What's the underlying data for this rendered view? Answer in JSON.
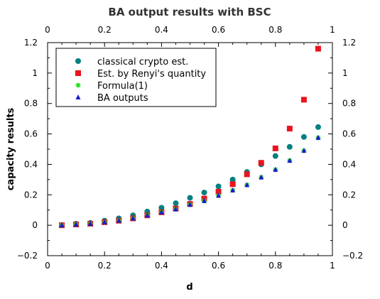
{
  "chart_data": {
    "type": "scatter",
    "title": "BA output results with BSC",
    "xlabel": "d",
    "ylabel": "capacity results",
    "xlim": [
      0,
      1
    ],
    "ylim": [
      -0.2,
      1.2
    ],
    "xticks": [
      "0",
      "0.2",
      "0.4",
      "0.6",
      "0.8",
      "1"
    ],
    "xticks_top": [
      "0",
      "0.2",
      "0.4",
      "0.6",
      "0.8",
      "1"
    ],
    "yticks": [
      "−0.2",
      "0",
      "0.2",
      "0.4",
      "0.6",
      "0.8",
      "1",
      "1.2"
    ],
    "yticks_right": [
      "−0.2",
      "0",
      "0.2",
      "0.4",
      "0.6",
      "0.8",
      "1",
      "1.2"
    ],
    "grid": false,
    "legend_position": "top-left",
    "series": [
      {
        "name": "classical crypto est.",
        "marker": "circle",
        "color": "#008080",
        "x": [
          0.05,
          0.1,
          0.15,
          0.2,
          0.25,
          0.3,
          0.35,
          0.4,
          0.45,
          0.5,
          0.55,
          0.6,
          0.65,
          0.7,
          0.75,
          0.8,
          0.85,
          0.9,
          0.95
        ],
        "y": [
          0.0,
          0.01,
          0.015,
          0.03,
          0.045,
          0.065,
          0.09,
          0.115,
          0.145,
          0.18,
          0.215,
          0.255,
          0.3,
          0.35,
          0.4,
          0.455,
          0.515,
          0.58,
          0.645
        ]
      },
      {
        "name": "Est. by Renyi's quantity",
        "marker": "square",
        "color": "#e8141e",
        "x": [
          0.05,
          0.1,
          0.15,
          0.2,
          0.25,
          0.3,
          0.35,
          0.4,
          0.45,
          0.5,
          0.55,
          0.6,
          0.65,
          0.7,
          0.75,
          0.8,
          0.85,
          0.9,
          0.95
        ],
        "y": [
          0.0,
          0.005,
          0.01,
          0.02,
          0.03,
          0.045,
          0.065,
          0.085,
          0.11,
          0.14,
          0.175,
          0.22,
          0.27,
          0.335,
          0.41,
          0.505,
          0.635,
          0.825,
          1.16
        ]
      },
      {
        "name": "Formula(1)",
        "marker": "star",
        "color": "#22dd22",
        "x": [
          0.05,
          0.1,
          0.15,
          0.2,
          0.25,
          0.3,
          0.35,
          0.4,
          0.45,
          0.5,
          0.55,
          0.6,
          0.65,
          0.7,
          0.75,
          0.8,
          0.85,
          0.9,
          0.95
        ],
        "y": [
          0.0,
          0.005,
          0.01,
          0.02,
          0.03,
          0.045,
          0.065,
          0.085,
          0.105,
          0.135,
          0.16,
          0.195,
          0.23,
          0.265,
          0.315,
          0.365,
          0.425,
          0.49,
          0.575
        ]
      },
      {
        "name": "BA outputs",
        "marker": "triangle",
        "color": "#1a1acc",
        "x": [
          0.05,
          0.1,
          0.15,
          0.2,
          0.25,
          0.3,
          0.35,
          0.4,
          0.45,
          0.5,
          0.55,
          0.6,
          0.65,
          0.7,
          0.75,
          0.8,
          0.85,
          0.9,
          0.95
        ],
        "y": [
          0.0,
          0.005,
          0.01,
          0.02,
          0.03,
          0.045,
          0.065,
          0.085,
          0.105,
          0.135,
          0.16,
          0.195,
          0.23,
          0.265,
          0.315,
          0.365,
          0.425,
          0.49,
          0.575
        ]
      }
    ]
  }
}
